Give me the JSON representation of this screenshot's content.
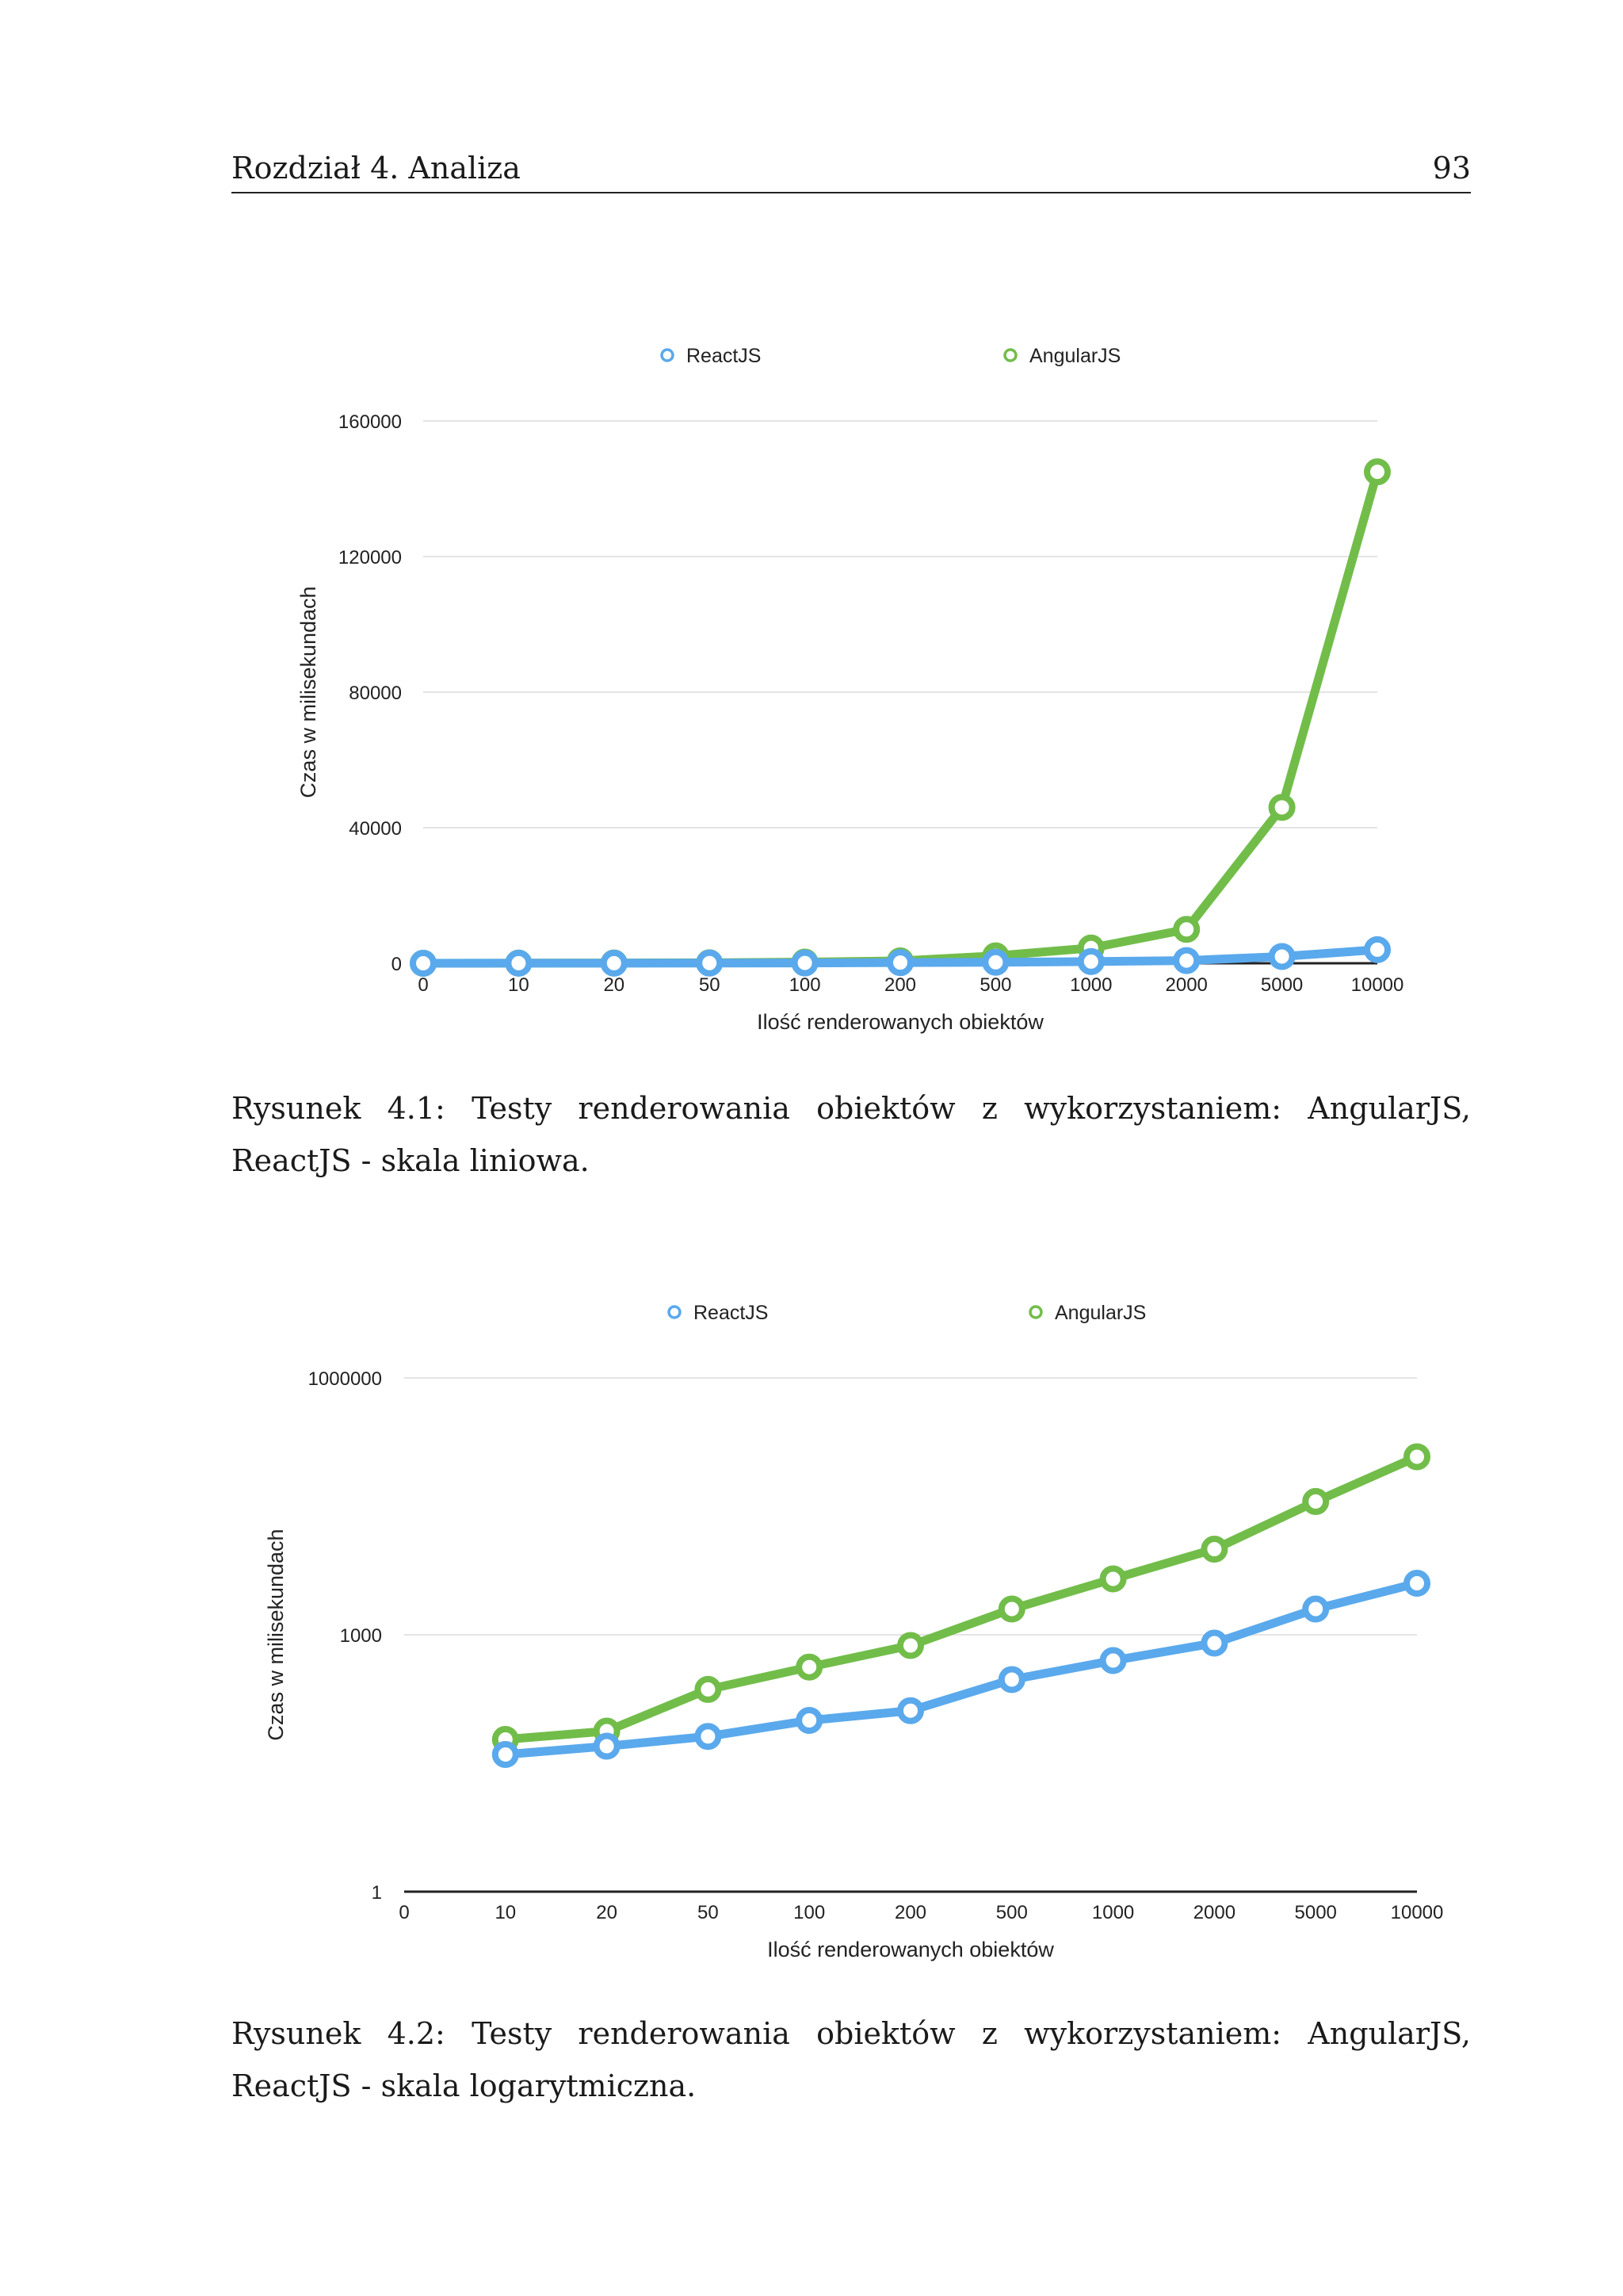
{
  "header": {
    "chapter": "Rozdział 4. Analiza",
    "page_number": "93"
  },
  "colors": {
    "react": "#5aa9ec",
    "angular": "#72bd4a",
    "grid": "#e4e4e4",
    "axis": "#222222"
  },
  "chart_data": [
    {
      "type": "line",
      "title": "",
      "categories": [
        "0",
        "10",
        "20",
        "50",
        "100",
        "200",
        "500",
        "1000",
        "2000",
        "5000",
        "10000"
      ],
      "series": [
        {
          "name": "ReactJS",
          "values": [
            0,
            20,
            30,
            50,
            100,
            200,
            300,
            500,
            800,
            2000,
            4000
          ]
        },
        {
          "name": "AngularJS",
          "values": [
            0,
            50,
            80,
            150,
            350,
            700,
            2200,
            4500,
            10000,
            46000,
            145000
          ]
        }
      ],
      "xlabel": "Ilość renderowanych obiektów",
      "ylabel": "Czas w milisekundach",
      "ylim": [
        0,
        160000
      ],
      "yticks": [
        "0",
        "40000",
        "80000",
        "120000",
        "160000"
      ],
      "scale": "linear",
      "grid": true,
      "legend": "top"
    },
    {
      "type": "line",
      "title": "",
      "categories": [
        "0",
        "10",
        "20",
        "50",
        "100",
        "200",
        "500",
        "1000",
        "2000",
        "5000",
        "10000"
      ],
      "series": [
        {
          "name": "ReactJS",
          "values": [
            null,
            40,
            50,
            65,
            100,
            130,
            300,
            500,
            800,
            2000,
            4000
          ]
        },
        {
          "name": "AngularJS",
          "values": [
            null,
            60,
            75,
            230,
            420,
            750,
            2000,
            4500,
            10000,
            36000,
            120000
          ]
        }
      ],
      "xlabel": "Ilość renderowanych obiektów",
      "ylabel": "Czas w milisekundach",
      "ylim": [
        1,
        1000000
      ],
      "yticks": [
        "1",
        "1000",
        "1000000"
      ],
      "scale": "log",
      "grid": true,
      "legend": "top"
    }
  ],
  "captions": [
    "Rysunek 4.1: Testy renderowania obiektów z wykorzystaniem: AngularJS, ReactJS - skala liniowa.",
    "Rysunek 4.2: Testy renderowania obiektów z wykorzystaniem: AngularJS, ReactJS - skala logarytmiczna."
  ]
}
